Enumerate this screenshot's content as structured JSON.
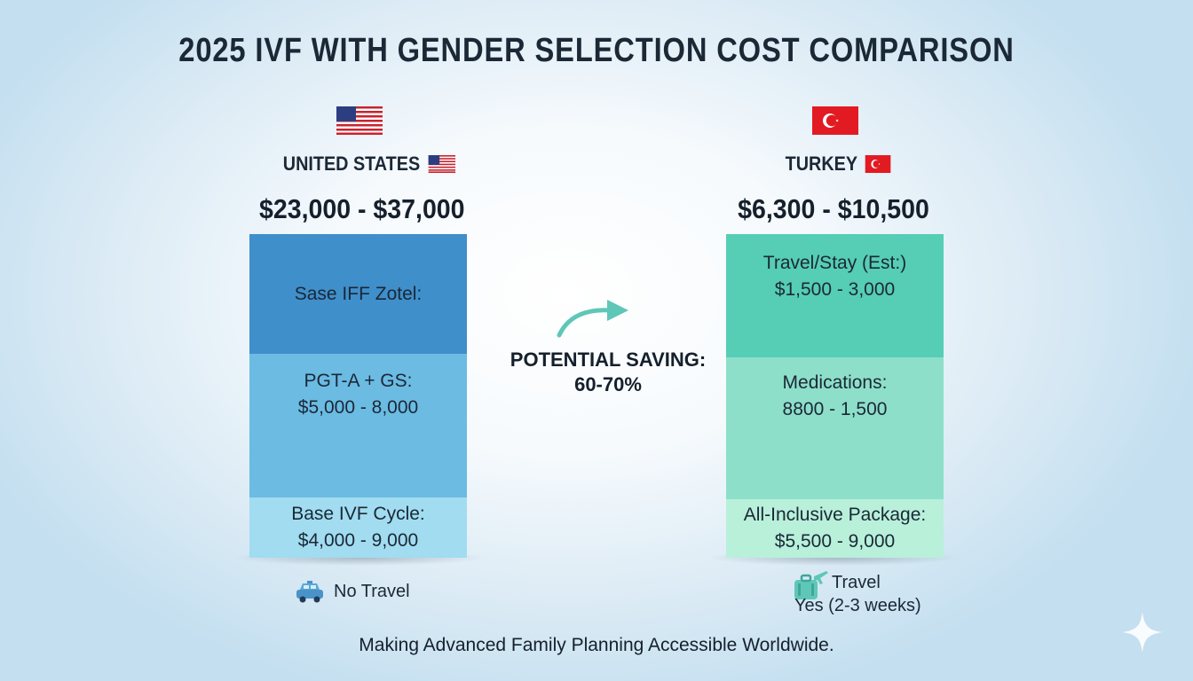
{
  "title": "2025 IVF WITH GENDER SELECTION COST COMPARISON",
  "colors": {
    "us_top": "#3f8fcb",
    "us_mid": "#6bbbe3",
    "us_bottom": "#a1dcf0",
    "tr_top": "#56cdb5",
    "tr_mid": "#8ddfc9",
    "tr_bottom": "#b8f0da",
    "arrow": "#5ec7b8"
  },
  "icons": {
    "us_flag": "us-flag-icon",
    "tr_flag": "turkey-flag-icon",
    "no_travel": "car-icon",
    "travel": "luggage-plane-icon",
    "sparkle": "sparkle-icon"
  },
  "chart_data": {
    "type": "bar",
    "stacked": true,
    "title": "2025 IVF WITH GENDER SELECTION COST COMPARISON",
    "columns": [
      {
        "country": "UNITED STATES",
        "total_range": "$23,000 - $37,000",
        "segments_top_to_bottom": [
          {
            "label": "Sase IFF Zotel:",
            "value": ""
          },
          {
            "label": "PGT-A + GS:",
            "value": "$5,000 - 8,000"
          },
          {
            "label": "Base IVF Cycle:",
            "value": "$4,000 - 9,000"
          }
        ],
        "travel_note": [
          "No Travel"
        ]
      },
      {
        "country": "TURKEY",
        "total_range": "$6,300 - $10,500",
        "segments_top_to_bottom": [
          {
            "label": "Travel/Stay (Est:)",
            "value": "$1,500 - 3,000"
          },
          {
            "label": "Medications:",
            "value": "8800 - 1,500"
          },
          {
            "label": "All-Inclusive Package:",
            "value": "$5,500 - 9,000"
          }
        ],
        "travel_note": [
          "Travel",
          "Yes (2-3 weeks)"
        ]
      }
    ],
    "annotation": {
      "label": "POTENTIAL SAVING:",
      "value": "60-70%"
    },
    "footer": "Making Advanced Family Planning Accessible Worldwide."
  }
}
